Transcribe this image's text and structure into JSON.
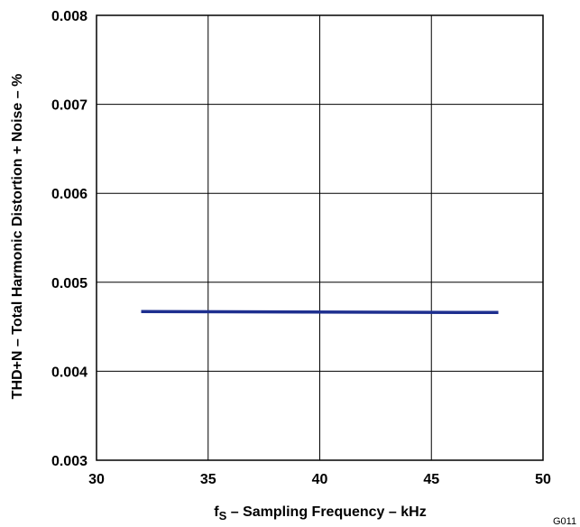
{
  "chart_data": {
    "type": "line",
    "x": [
      32,
      48
    ],
    "series": [
      {
        "values": [
          0.00467,
          0.00466
        ],
        "color": "#1e2f8f"
      }
    ],
    "xlabel_main": "f",
    "xlabel_sub": "S",
    "xlabel_rest": " – Sampling Frequency – kHz",
    "ylabel": "THD+N – Total Harmonic Distortion + Noise – %",
    "xlim": [
      30,
      50
    ],
    "ylim": [
      0.003,
      0.008
    ],
    "xticks": [
      "30",
      "35",
      "40",
      "45",
      "50"
    ],
    "yticks": [
      "0.003",
      "0.004",
      "0.005",
      "0.006",
      "0.007",
      "0.008"
    ],
    "grid": true
  },
  "figure_id": "G011"
}
